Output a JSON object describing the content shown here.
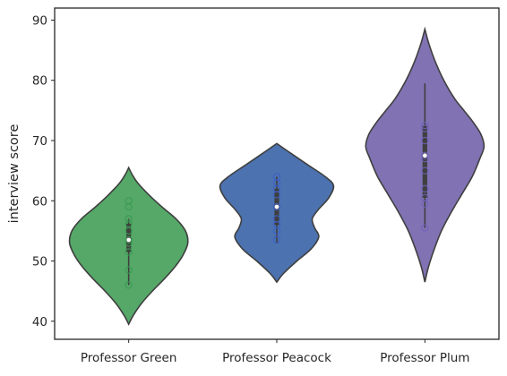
{
  "chart_data": {
    "type": "violin",
    "title": "",
    "xlabel": "",
    "ylabel": "interview score",
    "ylim": [
      37,
      92
    ],
    "yticks": [
      40,
      50,
      60,
      70,
      80,
      90
    ],
    "grid": false,
    "categories": [
      "Professor Green",
      "Professor Peacock",
      "Professor Plum"
    ],
    "series": [
      {
        "category": "Professor Green",
        "color": "#55a868",
        "points_color": "#3a9a50",
        "kde_min": 39.5,
        "kde_max": 65.5,
        "density": [
          {
            "y": 39.5,
            "w": 0.0
          },
          {
            "y": 41,
            "w": 0.08
          },
          {
            "y": 43,
            "w": 0.22
          },
          {
            "y": 45,
            "w": 0.4
          },
          {
            "y": 47,
            "w": 0.6
          },
          {
            "y": 49,
            "w": 0.78
          },
          {
            "y": 51,
            "w": 0.92
          },
          {
            "y": 53,
            "w": 1.0
          },
          {
            "y": 55,
            "w": 0.96
          },
          {
            "y": 57,
            "w": 0.8
          },
          {
            "y": 59,
            "w": 0.56
          },
          {
            "y": 61,
            "w": 0.34
          },
          {
            "y": 63,
            "w": 0.15
          },
          {
            "y": 64.5,
            "w": 0.05
          },
          {
            "y": 65.5,
            "w": 0.0
          }
        ],
        "whisker_low": 46,
        "whisker_high": 57,
        "q1": 51.5,
        "q3": 56.2,
        "median": 53.5,
        "points": [
          46,
          48.5,
          51.5,
          53,
          53.5,
          55,
          56.2,
          57,
          59,
          60
        ]
      },
      {
        "category": "Professor Peacock",
        "color": "#4c72b0",
        "points_color": "#3c5fc6",
        "kde_min": 46.5,
        "kde_max": 69.5,
        "density": [
          {
            "y": 46.5,
            "w": 0.0
          },
          {
            "y": 48,
            "w": 0.12
          },
          {
            "y": 50,
            "w": 0.34
          },
          {
            "y": 52,
            "w": 0.58
          },
          {
            "y": 54,
            "w": 0.71
          },
          {
            "y": 55.5,
            "w": 0.64
          },
          {
            "y": 57,
            "w": 0.6
          },
          {
            "y": 58.5,
            "w": 0.7
          },
          {
            "y": 60.5,
            "w": 0.88
          },
          {
            "y": 62.5,
            "w": 0.96
          },
          {
            "y": 64,
            "w": 0.82
          },
          {
            "y": 66,
            "w": 0.52
          },
          {
            "y": 68,
            "w": 0.22
          },
          {
            "y": 69.5,
            "w": 0.0
          }
        ],
        "whisker_low": 53,
        "whisker_high": 64,
        "q1": 56,
        "q3": 62,
        "median": 59,
        "points": [
          53.5,
          55,
          56,
          57,
          59,
          61,
          62,
          63,
          64
        ]
      },
      {
        "category": "Professor Plum",
        "color": "#8172b3",
        "points_color": "#6f62b8",
        "kde_min": 46.5,
        "kde_max": 88.5,
        "density": [
          {
            "y": 46.5,
            "w": 0.0
          },
          {
            "y": 49,
            "w": 0.06
          },
          {
            "y": 52,
            "w": 0.16
          },
          {
            "y": 55,
            "w": 0.28
          },
          {
            "y": 58,
            "w": 0.44
          },
          {
            "y": 61,
            "w": 0.62
          },
          {
            "y": 64,
            "w": 0.8
          },
          {
            "y": 67,
            "w": 0.93
          },
          {
            "y": 69,
            "w": 1.0
          },
          {
            "y": 71,
            "w": 0.95
          },
          {
            "y": 73,
            "w": 0.82
          },
          {
            "y": 75,
            "w": 0.66
          },
          {
            "y": 77,
            "w": 0.5
          },
          {
            "y": 80,
            "w": 0.32
          },
          {
            "y": 83,
            "w": 0.18
          },
          {
            "y": 86,
            "w": 0.07
          },
          {
            "y": 88.5,
            "w": 0.0
          }
        ],
        "whisker_low": 55.5,
        "whisker_high": 79.5,
        "q1": 60.5,
        "q3": 72.5,
        "median": 67.5,
        "points": [
          55.5,
          59.5,
          60.5,
          62,
          65,
          67,
          67.5,
          70,
          72,
          72.5
        ]
      }
    ]
  }
}
